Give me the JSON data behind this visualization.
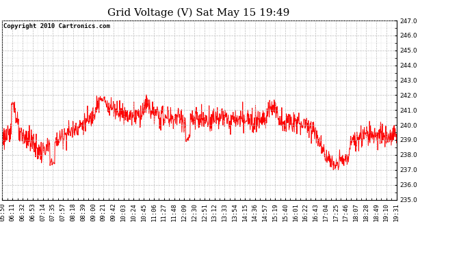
{
  "title": "Grid Voltage (V) Sat May 15 19:49",
  "copyright": "Copyright 2010 Cartronics.com",
  "background_color": "#ffffff",
  "plot_bg_color": "#ffffff",
  "line_color": "#ff0000",
  "ylim": [
    235.0,
    247.0
  ],
  "yticks": [
    235.0,
    236.0,
    237.0,
    238.0,
    239.0,
    240.0,
    241.0,
    242.0,
    243.0,
    244.0,
    245.0,
    246.0,
    247.0
  ],
  "xtick_labels": [
    "05:50",
    "06:11",
    "06:32",
    "06:53",
    "07:14",
    "07:35",
    "07:57",
    "08:18",
    "08:39",
    "09:00",
    "09:21",
    "09:42",
    "10:03",
    "10:24",
    "10:45",
    "11:06",
    "11:27",
    "11:48",
    "12:09",
    "12:30",
    "12:51",
    "13:12",
    "13:33",
    "13:54",
    "14:15",
    "14:36",
    "14:57",
    "15:19",
    "15:40",
    "16:01",
    "16:22",
    "16:43",
    "17:04",
    "17:25",
    "17:46",
    "18:07",
    "18:28",
    "18:49",
    "19:10",
    "19:31"
  ],
  "title_fontsize": 11,
  "tick_fontsize": 6.5,
  "copyright_fontsize": 6.5,
  "grid_color": "#bbbbbb",
  "grid_style": "--",
  "grid_alpha": 1.0,
  "line_width": 0.7
}
